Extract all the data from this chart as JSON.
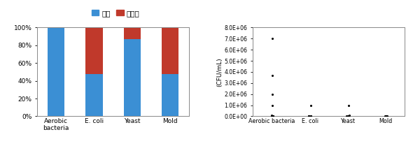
{
  "bar_categories": [
    "Aerobic\nbacteria",
    "E. coli",
    "Yeast",
    "Mold"
  ],
  "detected": [
    100,
    47.4,
    86.7,
    47.4
  ],
  "not_detected": [
    0,
    52.6,
    13.3,
    52.6
  ],
  "bar_color_detected": "#3b8fd4",
  "bar_color_not_detected": "#c0392b",
  "legend_labels": [
    "검출",
    "비검출"
  ],
  "yticks_bar": [
    0,
    20,
    40,
    60,
    80,
    100
  ],
  "ytick_labels_bar": [
    "0%",
    "20%",
    "40%",
    "60%",
    "80%",
    "100%"
  ],
  "scatter_categories": [
    "Aerobic bacteria",
    "E. coli",
    "Yeast",
    "Mold"
  ],
  "scatter_data_aerobic": [
    7000000,
    3700000,
    2000000,
    1000000,
    100000,
    50000,
    20000,
    10000,
    5000,
    1000,
    500,
    100,
    50
  ],
  "scatter_data_ecoli": [
    1000000,
    50000,
    10000,
    1000,
    100,
    50
  ],
  "scatter_data_yeast": [
    1000000,
    100000,
    10000,
    1000,
    100,
    50
  ],
  "scatter_data_mold": [
    50000,
    10000,
    1000,
    100
  ],
  "ylabel_scatter": "(CFU/mL)",
  "ylim_scatter": [
    0,
    8000000
  ],
  "yticks_scatter": [
    0,
    1000000,
    2000000,
    3000000,
    4000000,
    5000000,
    6000000,
    7000000,
    8000000
  ],
  "ytick_labels_scatter": [
    "0.0E+00",
    "1.0E+06",
    "2.0E+06",
    "3.0E+06",
    "4.0E+06",
    "5.0E+06",
    "6.0E+06",
    "7.0E+06",
    "8.0E+06"
  ],
  "bar_width": 0.45
}
